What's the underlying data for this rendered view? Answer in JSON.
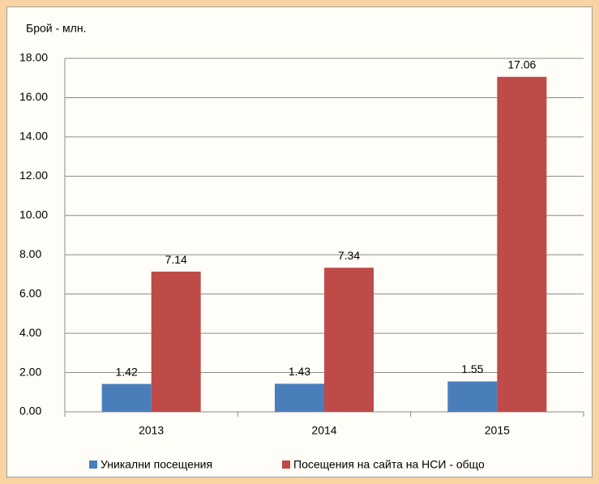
{
  "chart_data": {
    "type": "bar",
    "y_axis_label": "Брой - млн.",
    "categories": [
      "2013",
      "2014",
      "2015"
    ],
    "series": [
      {
        "name": "Уникални посещения",
        "color": "#4a7ebb",
        "values": [
          1.42,
          1.43,
          1.55
        ]
      },
      {
        "name": "Посещения на сайта на НСИ - общо",
        "color": "#be4b48",
        "values": [
          7.14,
          7.34,
          17.06
        ]
      }
    ],
    "ylim": [
      0,
      18
    ],
    "yticks": [
      {
        "value": 0,
        "label": "0.00"
      },
      {
        "value": 2,
        "label": "2.00"
      },
      {
        "value": 4,
        "label": "4.00"
      },
      {
        "value": 6,
        "label": "6.00"
      },
      {
        "value": 8,
        "label": "8.00"
      },
      {
        "value": 10,
        "label": "10.00"
      },
      {
        "value": 12,
        "label": "12.00"
      },
      {
        "value": 14,
        "label": "14.00"
      },
      {
        "value": 16,
        "label": "16.00"
      },
      {
        "value": 18,
        "label": "18.00"
      }
    ],
    "grid": true,
    "legend": "bottom"
  }
}
